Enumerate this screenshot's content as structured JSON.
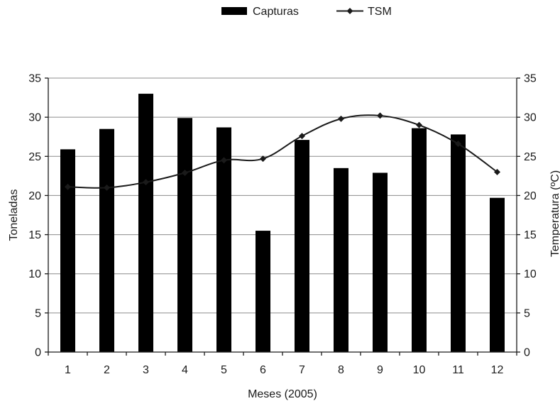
{
  "chart_data": {
    "type": "bar+line",
    "x_title": "Meses (2005)",
    "categories": [
      "1",
      "2",
      "3",
      "4",
      "5",
      "6",
      "7",
      "8",
      "9",
      "10",
      "11",
      "12"
    ],
    "left_axis": {
      "title": "Toneladas",
      "ylim": [
        0,
        35
      ],
      "ticks": [
        0,
        5,
        10,
        15,
        20,
        25,
        30,
        35
      ]
    },
    "right_axis": {
      "title": "Temperatura (ºC)",
      "ylim": [
        0,
        35
      ],
      "ticks": [
        0,
        5,
        10,
        15,
        20,
        25,
        30,
        35
      ]
    },
    "series": [
      {
        "name": "Capturas",
        "kind": "bar",
        "axis": "left",
        "color": "#000000",
        "values": [
          25.9,
          28.5,
          33.0,
          29.9,
          28.7,
          15.5,
          27.1,
          23.5,
          22.9,
          28.6,
          27.8,
          19.7
        ]
      },
      {
        "name": "TSM",
        "kind": "line",
        "axis": "right",
        "color": "#1a1a1a",
        "marker": "diamond",
        "values": [
          21.1,
          21.0,
          21.7,
          22.9,
          24.5,
          24.7,
          27.6,
          29.8,
          30.2,
          29.0,
          26.6,
          23.0
        ]
      }
    ],
    "grid": {
      "horizontal": true,
      "vertical": false
    },
    "legend": {
      "position": "top-center"
    }
  }
}
